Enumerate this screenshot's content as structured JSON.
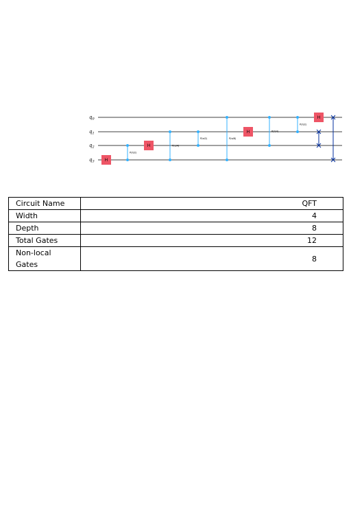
{
  "circuit": {
    "qubits": [
      {
        "base": "q",
        "sub": "0"
      },
      {
        "base": "q",
        "sub": "1"
      },
      {
        "base": "q",
        "sub": "2"
      },
      {
        "base": "q",
        "sub": "3"
      }
    ],
    "gates": [
      {
        "type": "H",
        "label": "H",
        "qubit": 3,
        "step": 0
      },
      {
        "type": "cphase",
        "control": 3,
        "target": 2,
        "label": "P(π/2)",
        "step": 1
      },
      {
        "type": "H",
        "label": "H",
        "qubit": 2,
        "step": 2
      },
      {
        "type": "cphase",
        "control": 3,
        "target": 1,
        "label": "P(π/4)",
        "step": 3
      },
      {
        "type": "cphase",
        "control": 2,
        "target": 1,
        "label": "P(π/2)",
        "step": 4
      },
      {
        "type": "cphase",
        "control": 3,
        "target": 0,
        "label": "P(π/8)",
        "step": 5
      },
      {
        "type": "H",
        "label": "H",
        "qubit": 1,
        "step": 6
      },
      {
        "type": "cphase",
        "control": 2,
        "target": 0,
        "label": "P(π/4)",
        "step": 7
      },
      {
        "type": "cphase",
        "control": 1,
        "target": 0,
        "label": "P(π/2)",
        "step": 8
      },
      {
        "type": "H",
        "label": "H",
        "qubit": 0,
        "step": 9
      },
      {
        "type": "swap",
        "a": 1,
        "b": 2,
        "step": 9
      },
      {
        "type": "swap",
        "a": 0,
        "b": 3,
        "step": 10
      }
    ],
    "colors": {
      "wire": "#000000",
      "h_gate": "#ee5566",
      "control": "#33b1ff",
      "swap": "#002d9c"
    }
  },
  "table": {
    "rows": [
      {
        "key": "Circuit Name",
        "value": "QFT"
      },
      {
        "key": "Width",
        "value": "4"
      },
      {
        "key": "Depth",
        "value": "8"
      },
      {
        "key": "Total Gates",
        "value": "12"
      },
      {
        "key": "Non-local Gates",
        "value": "8"
      }
    ]
  }
}
